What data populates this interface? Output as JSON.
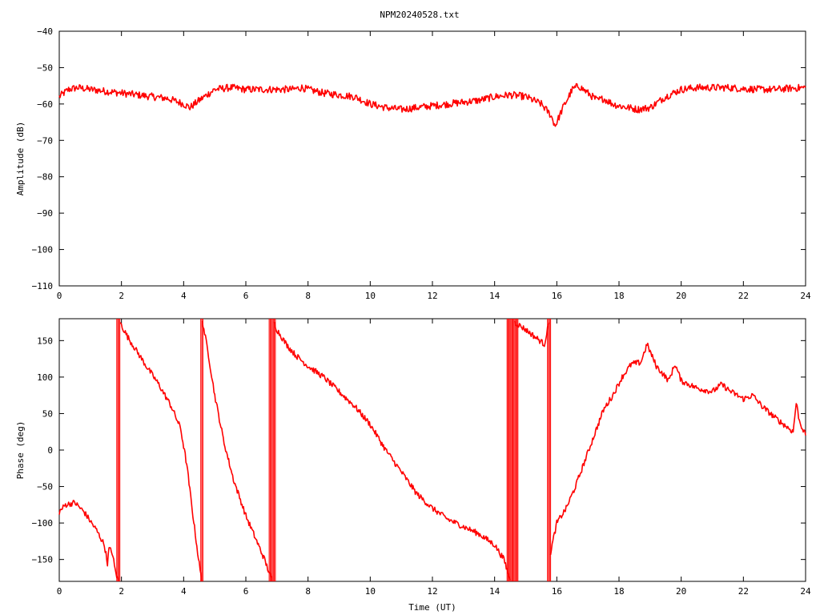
{
  "title": "NPM20240528.txt",
  "colors": {
    "trace": "#ff0000",
    "axes": "#000000",
    "background": "#ffffff"
  },
  "chart_data": [
    {
      "type": "line",
      "ylabel": "Amplitude (dB)",
      "xlabel": "",
      "xlim": [
        0,
        24
      ],
      "ylim": [
        -110,
        -40
      ],
      "xticks": [
        "0",
        "2",
        "4",
        "6",
        "8",
        "10",
        "12",
        "14",
        "16",
        "18",
        "20",
        "22",
        "24"
      ],
      "yticks": [
        "−40",
        "−50",
        "−60",
        "−70",
        "−80",
        "−90",
        "−100",
        "−110"
      ],
      "grid": false,
      "noise": 1.0,
      "series": [
        {
          "color": "#ff0000",
          "x": [
            0,
            0.3,
            0.6,
            1,
            1.5,
            2,
            2.5,
            3,
            3.5,
            4,
            4.2,
            4.5,
            5,
            5.5,
            6,
            6.5,
            7,
            7.5,
            7.8,
            8,
            8.5,
            9,
            9.5,
            10,
            10.5,
            11,
            11.5,
            12,
            12.5,
            13,
            13.5,
            14,
            14.5,
            15,
            15.5,
            15.8,
            15.95,
            16.2,
            16.5,
            16.7,
            17,
            17.3,
            17.5,
            17.8,
            18,
            18.3,
            18.6,
            19,
            19.5,
            20,
            20.5,
            21,
            21.5,
            22,
            22.5,
            23,
            23.5,
            24
          ],
          "y": [
            -58,
            -56,
            -55.5,
            -56,
            -56.5,
            -57,
            -57.5,
            -58,
            -58.5,
            -60,
            -61,
            -59,
            -56,
            -55.5,
            -56,
            -56,
            -56,
            -56,
            -55.5,
            -56,
            -57,
            -57.5,
            -58,
            -60,
            -61,
            -61.5,
            -61,
            -60.5,
            -60,
            -59.5,
            -59,
            -58,
            -57.5,
            -58,
            -60,
            -63,
            -66,
            -61,
            -56,
            -55,
            -57,
            -59,
            -58.5,
            -60,
            -60.5,
            -61,
            -61.5,
            -61,
            -58,
            -56,
            -55.5,
            -55.5,
            -55.5,
            -55.8,
            -56,
            -56,
            -55.7,
            -55.5
          ]
        }
      ]
    },
    {
      "type": "line",
      "ylabel": "Phase (deg)",
      "xlabel": "Time (UT)",
      "xlim": [
        0,
        24
      ],
      "ylim": [
        -180,
        180
      ],
      "xticks": [
        "0",
        "2",
        "4",
        "6",
        "8",
        "10",
        "12",
        "14",
        "16",
        "18",
        "20",
        "22",
        "24"
      ],
      "yticks": [
        "150",
        "100",
        "50",
        "0",
        "−50",
        "−100",
        "−150"
      ],
      "ytick_values": [
        150,
        100,
        50,
        0,
        -50,
        -100,
        -150
      ],
      "grid": false,
      "noise": 4.0,
      "series": [
        {
          "color": "#ff0000",
          "segments": [
            {
              "x": [
                0,
                0.2,
                0.5,
                0.8,
                1.2,
                1.45,
                1.55,
                1.6,
                1.7,
                1.8,
                1.9
              ],
              "y": [
                -85,
                -75,
                -72,
                -85,
                -110,
                -130,
                -155,
                -135,
                -140,
                -165,
                -180
              ]
            },
            {
              "x": [
                1.95,
                2.2,
                2.5,
                2.8,
                3.2,
                3.6,
                3.9,
                4.1,
                4.3,
                4.45,
                4.58
              ],
              "y": [
                175,
                155,
                135,
                115,
                90,
                60,
                30,
                -20,
                -90,
                -140,
                -180
              ]
            },
            {
              "x": [
                4.6,
                4.8,
                5,
                5.3,
                5.6,
                6,
                6.3,
                6.6,
                6.85
              ],
              "y": [
                178,
                130,
                75,
                10,
                -40,
                -90,
                -120,
                -150,
                -180
              ]
            },
            {
              "x": [
                6.9,
                7,
                7.3,
                7.6,
                8,
                8.5,
                9,
                9.5,
                10,
                10.5,
                11,
                11.5,
                12,
                12.5,
                13,
                13.5,
                14,
                14.3,
                14.5
              ],
              "y": [
                175,
                165,
                145,
                130,
                115,
                100,
                80,
                60,
                35,
                0,
                -30,
                -60,
                -80,
                -95,
                -105,
                -115,
                -130,
                -150,
                -178
              ]
            },
            {
              "x": [
                14.65,
                15,
                15.3,
                15.6,
                15.75
              ],
              "y": [
                175,
                165,
                155,
                145,
                175
              ]
            },
            {
              "x": [
                15.8,
                16,
                16.3,
                16.6,
                16.9,
                17.2,
                17.5,
                17.8,
                18.1,
                18.4,
                18.7,
                18.9,
                19.2,
                19.6,
                19.8,
                20,
                20.5,
                21,
                21.3,
                21.6,
                22,
                22.3,
                22.6,
                23,
                23.3,
                23.6,
                23.7,
                23.8,
                24
              ],
              "y": [
                -140,
                -100,
                -80,
                -50,
                -15,
                20,
                55,
                75,
                100,
                118,
                120,
                145,
                115,
                95,
                118,
                95,
                85,
                80,
                90,
                80,
                70,
                75,
                60,
                45,
                35,
                25,
                65,
                40,
                20
              ]
            }
          ],
          "wraps": [
            [
              1.85,
              1.95
            ],
            [
              4.55,
              4.62
            ],
            [
              6.75,
              6.95
            ],
            [
              14.4,
              14.75
            ],
            [
              15.7,
              15.8
            ]
          ]
        }
      ]
    }
  ]
}
